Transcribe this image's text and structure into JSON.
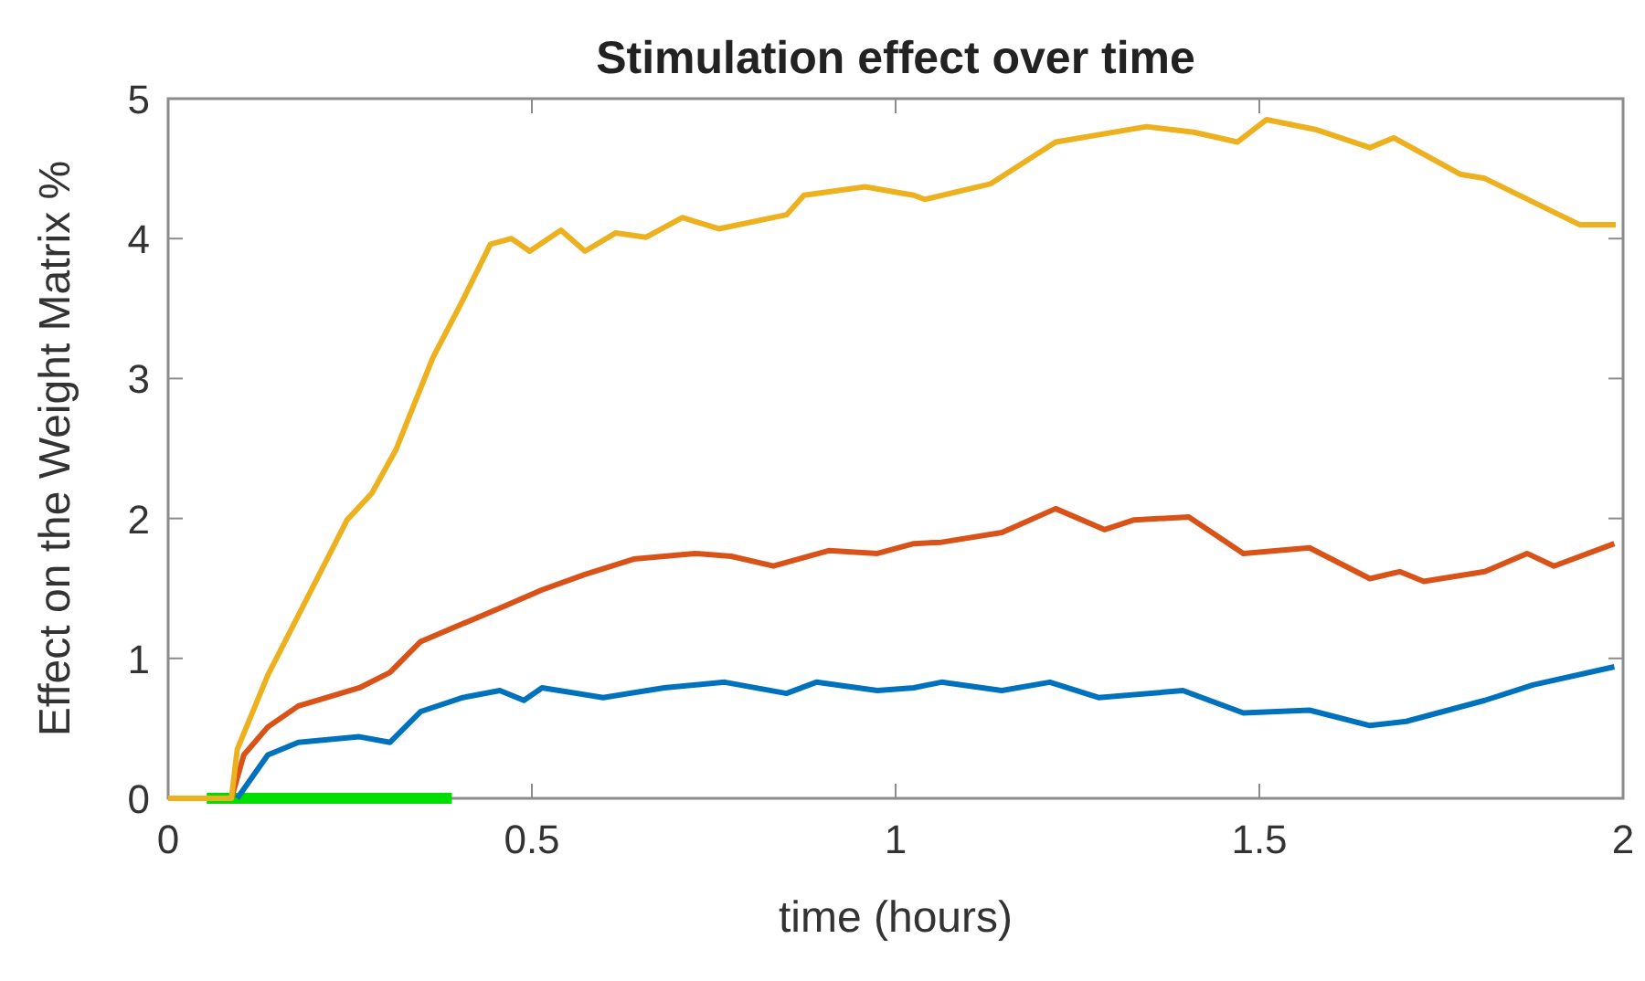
{
  "chart_data": {
    "type": "line",
    "title": "Stimulation effect over time",
    "xlabel": "time (hours)",
    "ylabel": "Effect on the Weight Matrix %",
    "xlim": [
      0,
      2
    ],
    "xticks": [
      0,
      0.5,
      1,
      1.5,
      2
    ],
    "ylim": [
      0,
      5
    ],
    "yticks": [
      0,
      1,
      2,
      3,
      4,
      5
    ],
    "grid": false,
    "marker": "none",
    "line_style": "solid",
    "series": [
      {
        "color": "#00dd00",
        "x": [
          0.053,
          0.39
        ],
        "values": [
          0,
          0
        ]
      },
      {
        "color": "#0072bd",
        "x": [
          0.095,
          0.137,
          0.179,
          0.263,
          0.305,
          0.347,
          0.405,
          0.456,
          0.489,
          0.514,
          0.598,
          0.682,
          0.765,
          0.85,
          0.891,
          0.975,
          1.025,
          1.063,
          1.146,
          1.212,
          1.279,
          1.395,
          1.478,
          1.569,
          1.652,
          1.702,
          1.81,
          1.876,
          1.988
        ],
        "values": [
          0,
          0.31,
          0.4,
          0.44,
          0.4,
          0.62,
          0.72,
          0.77,
          0.7,
          0.79,
          0.72,
          0.79,
          0.83,
          0.75,
          0.83,
          0.77,
          0.79,
          0.83,
          0.77,
          0.83,
          0.72,
          0.77,
          0.61,
          0.63,
          0.52,
          0.55,
          0.7,
          0.81,
          0.94
        ]
      },
      {
        "color": "#d95319",
        "x": [
          0.087,
          0.104,
          0.137,
          0.179,
          0.263,
          0.305,
          0.347,
          0.397,
          0.456,
          0.514,
          0.573,
          0.64,
          0.724,
          0.774,
          0.832,
          0.908,
          0.975,
          1.025,
          1.063,
          1.146,
          1.22,
          1.287,
          1.328,
          1.403,
          1.478,
          1.569,
          1.652,
          1.693,
          1.726,
          1.81,
          1.868,
          1.905,
          1.988
        ],
        "values": [
          0,
          0.31,
          0.51,
          0.66,
          0.79,
          0.9,
          1.12,
          1.23,
          1.36,
          1.49,
          1.6,
          1.71,
          1.75,
          1.73,
          1.66,
          1.77,
          1.75,
          1.82,
          1.83,
          1.9,
          2.07,
          1.92,
          1.99,
          2.01,
          1.75,
          1.79,
          1.57,
          1.62,
          1.55,
          1.62,
          1.75,
          1.66,
          1.82
        ]
      },
      {
        "color": "#edb120",
        "x": [
          0,
          0.087,
          0.095,
          0.137,
          0.188,
          0.246,
          0.28,
          0.313,
          0.364,
          0.405,
          0.443,
          0.472,
          0.497,
          0.54,
          0.573,
          0.615,
          0.657,
          0.707,
          0.757,
          0.85,
          0.874,
          0.958,
          1.025,
          1.04,
          1.13,
          1.22,
          1.345,
          1.41,
          1.47,
          1.51,
          1.577,
          1.652,
          1.685,
          1.776,
          1.81,
          1.94,
          1.99
        ],
        "values": [
          0,
          0,
          0.35,
          0.88,
          1.4,
          1.99,
          2.18,
          2.49,
          3.15,
          3.56,
          3.96,
          4.0,
          3.91,
          4.06,
          3.91,
          4.04,
          4.01,
          4.15,
          4.07,
          4.17,
          4.31,
          4.37,
          4.31,
          4.28,
          4.39,
          4.69,
          4.8,
          4.76,
          4.69,
          4.85,
          4.78,
          4.65,
          4.72,
          4.46,
          4.43,
          4.1,
          4.1
        ]
      }
    ]
  }
}
